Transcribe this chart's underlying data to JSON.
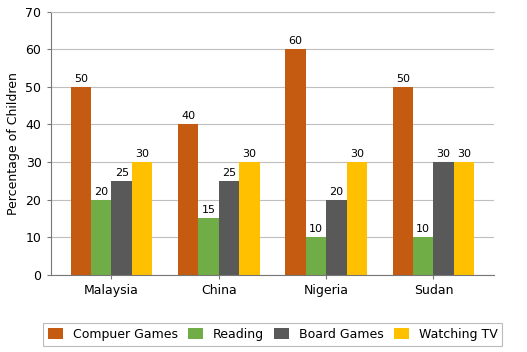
{
  "categories": [
    "Malaysia",
    "China",
    "Nigeria",
    "Sudan"
  ],
  "series": {
    "Compuer Games": [
      50,
      40,
      60,
      50
    ],
    "Reading": [
      20,
      15,
      10,
      10
    ],
    "Board Games": [
      25,
      25,
      20,
      30
    ],
    "Watching TV": [
      30,
      30,
      30,
      30
    ]
  },
  "colors": {
    "Compuer Games": "#C55A11",
    "Reading": "#70AD47",
    "Board Games": "#595959",
    "Watching TV": "#FFC000"
  },
  "ylabel": "Percentage of Children",
  "ylim": [
    0,
    70
  ],
  "yticks": [
    0,
    10,
    20,
    30,
    40,
    50,
    60,
    70
  ],
  "bar_width": 0.19,
  "label_fontsize": 8,
  "tick_fontsize": 9,
  "legend_fontsize": 9,
  "background_color": "#FFFFFF",
  "grid_color": "#BFBFBF",
  "spine_color": "#767676"
}
